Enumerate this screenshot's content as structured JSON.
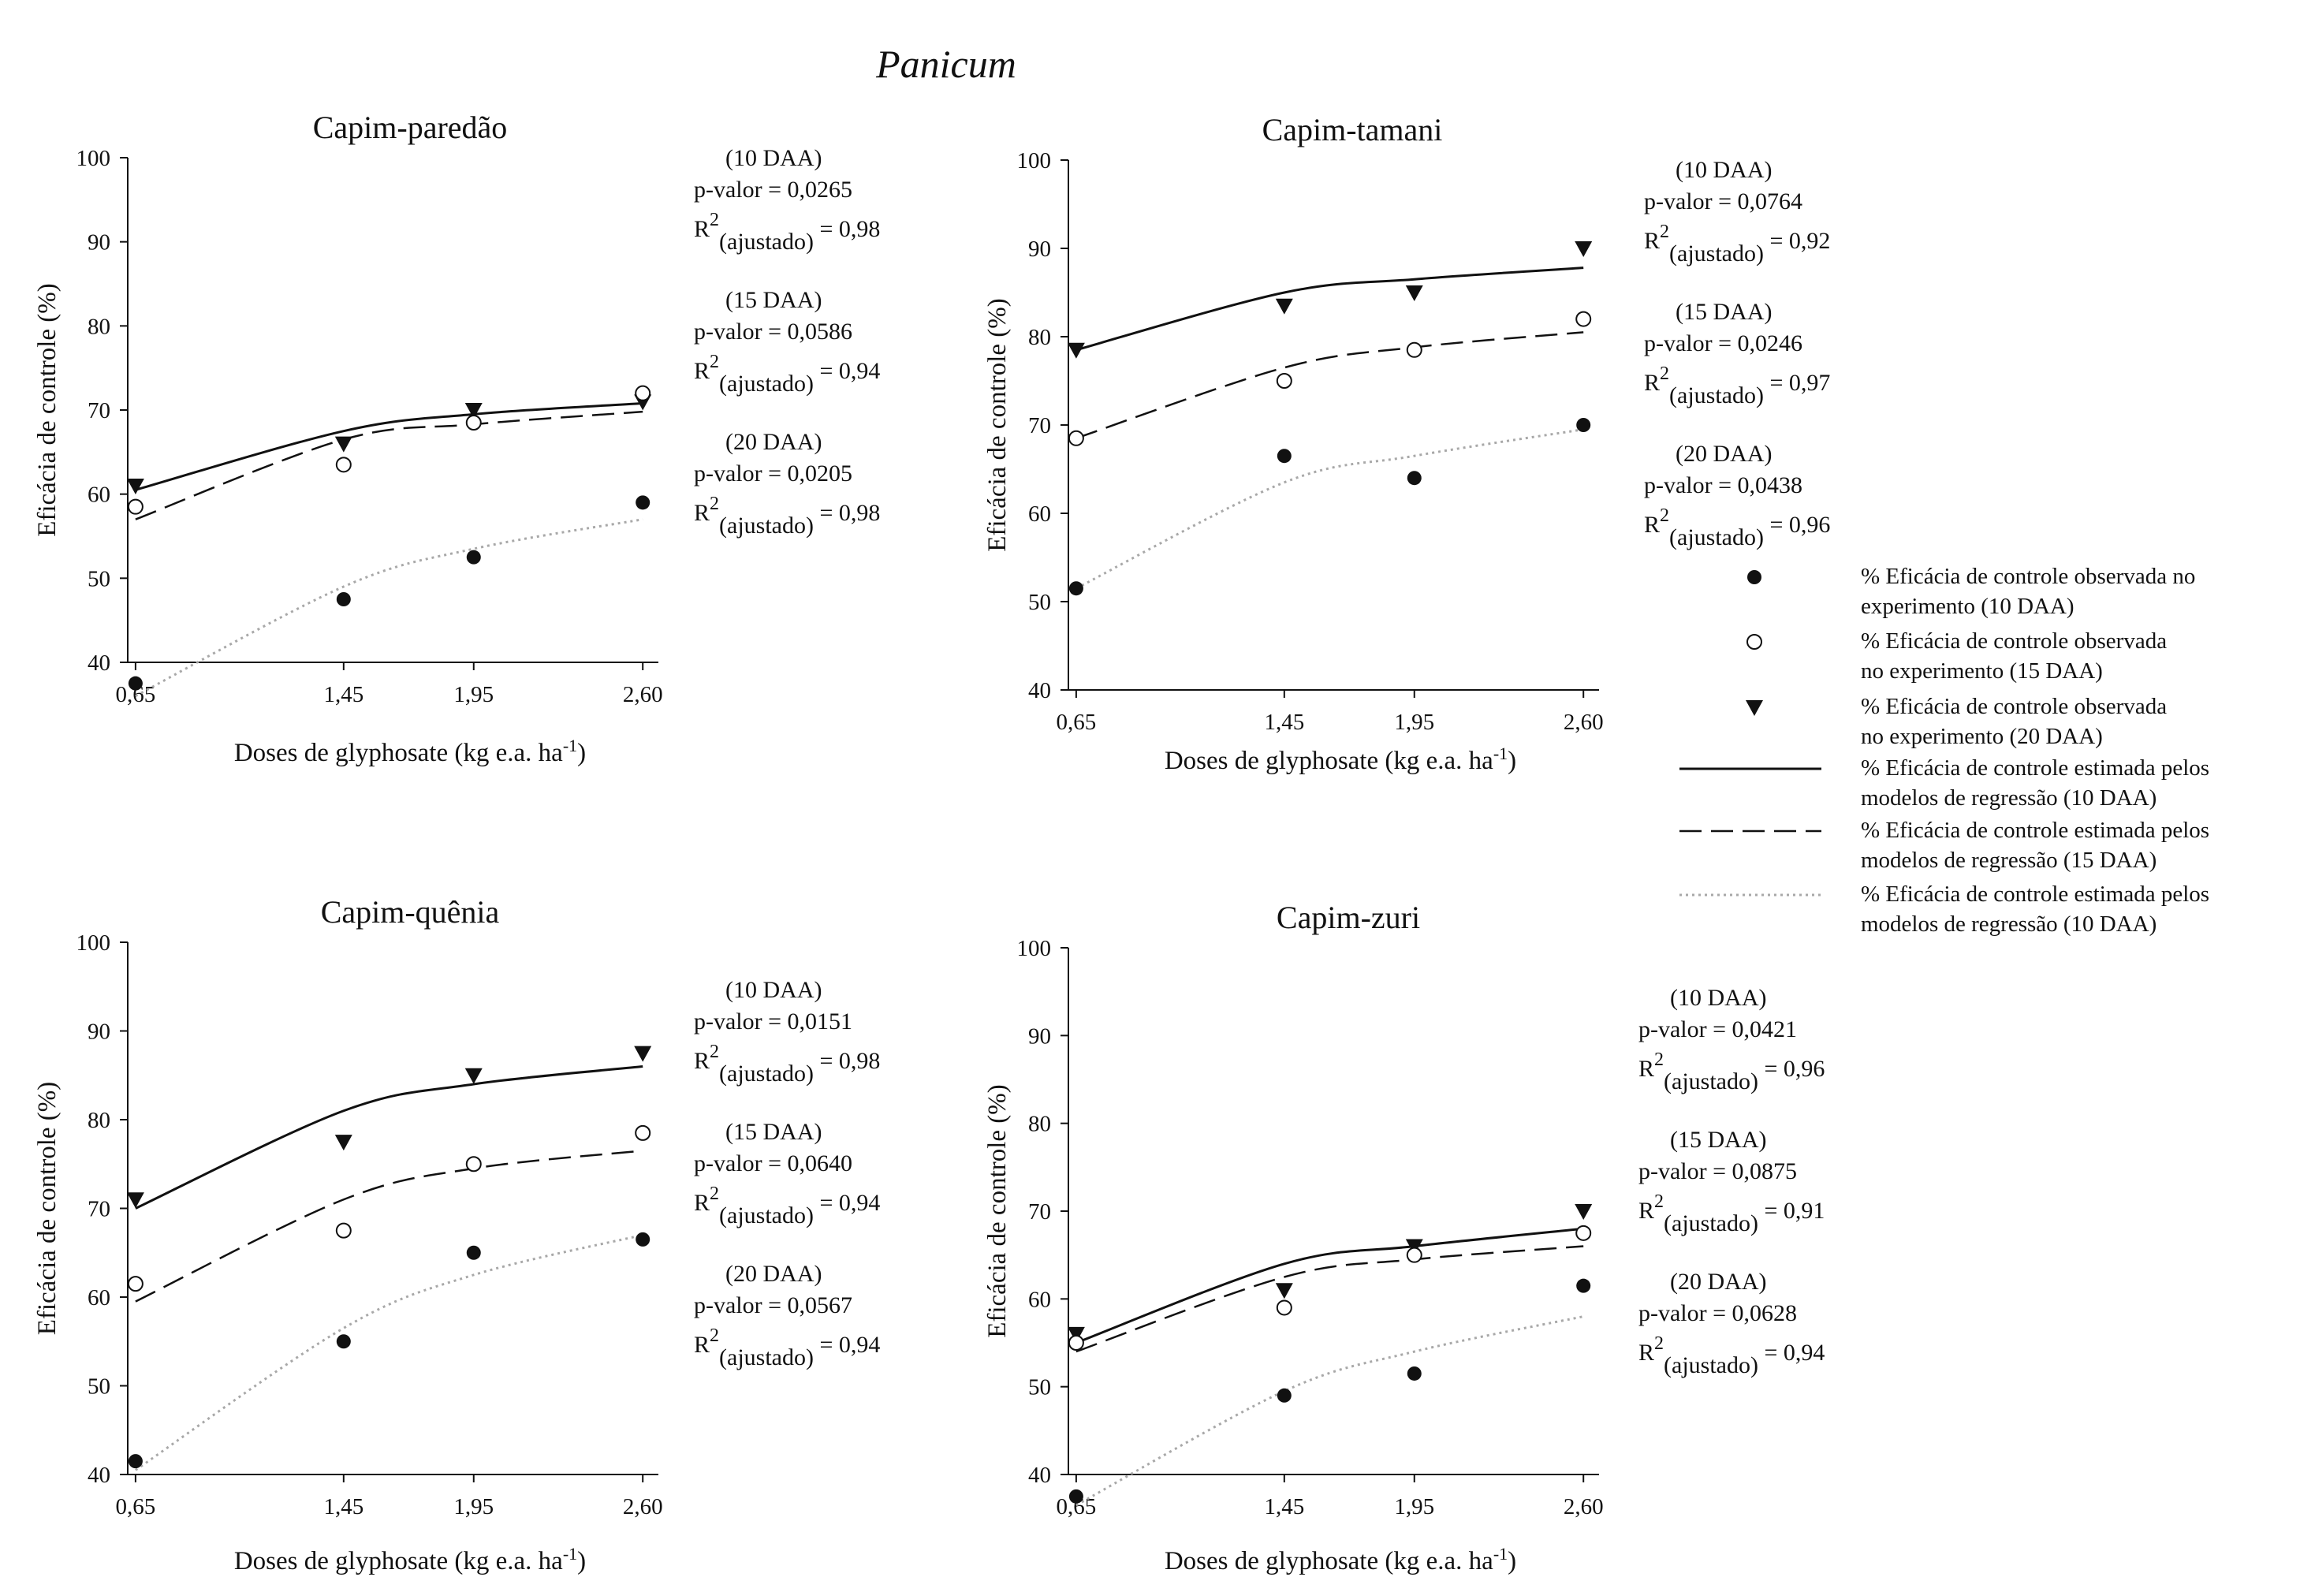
{
  "figure_title": "Panicum",
  "chart_data": [
    {
      "type": "scatter",
      "title": "Capim-paredão",
      "xlabel": "Doses de glyphosate (kg e.a. ha",
      "xlabel_sup": "-1",
      "ylabel": "Eficácia de controle (%)",
      "x": [
        0.65,
        1.45,
        1.95,
        2.6
      ],
      "x_tick_labels": [
        "0,65",
        "1,45",
        "1,95",
        "2,60"
      ],
      "ylim": [
        40,
        100
      ],
      "y_ticks": [
        40,
        50,
        60,
        70,
        80,
        90,
        100
      ],
      "series": [
        {
          "name": "20 DAA observado",
          "marker": "triangle",
          "values": [
            61,
            66,
            70,
            71
          ]
        },
        {
          "name": "15 DAA observado",
          "marker": "circle-open",
          "values": [
            58.5,
            63.5,
            68.5,
            72
          ]
        },
        {
          "name": "10 DAA observado",
          "marker": "circle-filled",
          "values": [
            37.5,
            47.5,
            52.5,
            59
          ]
        }
      ],
      "fits": [
        {
          "name": "estimada 10 DAA",
          "style": "solid",
          "values": [
            60.5,
            67.5,
            69.5,
            70.8
          ]
        },
        {
          "name": "estimada 15 DAA",
          "style": "dashed",
          "values": [
            57,
            66.5,
            68.3,
            69.8
          ]
        },
        {
          "name": "estimada 10 DAA",
          "style": "dotted",
          "values": [
            36,
            49,
            53.5,
            57
          ]
        }
      ],
      "stats": [
        {
          "label": "(10 DAA)",
          "p": "p-valor = 0,0265",
          "r2": "= 0,98"
        },
        {
          "label": "(15 DAA)",
          "p": "p-valor = 0,0586",
          "r2": "= 0,94"
        },
        {
          "label": "(20 DAA)",
          "p": "p-valor = 0,0205",
          "r2": "= 0,98"
        }
      ]
    },
    {
      "type": "scatter",
      "title": "Capim-tamani",
      "xlabel": "Doses de glyphosate (kg e.a. ha",
      "xlabel_sup": "-1",
      "ylabel": "Eficácia de controle (%)",
      "x": [
        0.65,
        1.45,
        1.95,
        2.6
      ],
      "x_tick_labels": [
        "0,65",
        "1,45",
        "1,95",
        "2,60"
      ],
      "ylim": [
        40,
        100
      ],
      "y_ticks": [
        40,
        50,
        60,
        70,
        80,
        90,
        100
      ],
      "series": [
        {
          "name": "20 DAA observado",
          "marker": "triangle",
          "values": [
            78.5,
            83.5,
            85,
            90
          ]
        },
        {
          "name": "15 DAA observado",
          "marker": "circle-open",
          "values": [
            68.5,
            75,
            78.5,
            82
          ]
        },
        {
          "name": "10 DAA observado",
          "marker": "circle-filled",
          "values": [
            51.5,
            66.5,
            64,
            70
          ]
        }
      ],
      "fits": [
        {
          "name": "estimada 10 DAA",
          "style": "solid",
          "values": [
            78.5,
            85,
            86.5,
            87.8
          ]
        },
        {
          "name": "estimada 15 DAA",
          "style": "dashed",
          "values": [
            68.5,
            76.5,
            78.8,
            80.5
          ]
        },
        {
          "name": "estimada 10 DAA",
          "style": "dotted",
          "values": [
            51.5,
            63.5,
            66.5,
            69.5
          ]
        }
      ],
      "stats": [
        {
          "label": "(10 DAA)",
          "p": "p-valor = 0,0764",
          "r2": "= 0,92"
        },
        {
          "label": "(15 DAA)",
          "p": "p-valor = 0,0246",
          "r2": "= 0,97"
        },
        {
          "label": "(20 DAA)",
          "p": "p-valor = 0,0438",
          "r2": "= 0,96"
        }
      ]
    },
    {
      "type": "scatter",
      "title": "Capim-quênia",
      "xlabel": "Doses de glyphosate (kg e.a. ha",
      "xlabel_sup": "-1",
      "ylabel": "Eficácia de controle (%)",
      "x": [
        0.65,
        1.45,
        1.95,
        2.6
      ],
      "x_tick_labels": [
        "0,65",
        "1,45",
        "1,95",
        "2,60"
      ],
      "ylim": [
        40,
        100
      ],
      "y_ticks": [
        40,
        50,
        60,
        70,
        80,
        90,
        100
      ],
      "series": [
        {
          "name": "20 DAA observado",
          "marker": "triangle",
          "values": [
            71,
            77.5,
            85,
            87.5
          ]
        },
        {
          "name": "15 DAA observado",
          "marker": "circle-open",
          "values": [
            61.5,
            67.5,
            75,
            78.5
          ]
        },
        {
          "name": "10 DAA observado",
          "marker": "circle-filled",
          "values": [
            41.5,
            55,
            65,
            66.5
          ]
        }
      ],
      "fits": [
        {
          "name": "estimada 10 DAA",
          "style": "solid",
          "values": [
            70,
            81,
            84,
            86
          ]
        },
        {
          "name": "estimada 15 DAA",
          "style": "dashed",
          "values": [
            59.5,
            71,
            74.5,
            76.5
          ]
        },
        {
          "name": "estimada 10 DAA",
          "style": "dotted",
          "values": [
            40.5,
            56.5,
            62.5,
            67
          ]
        }
      ],
      "stats": [
        {
          "label": "(10 DAA)",
          "p": "p-valor = 0,0151",
          "r2": "= 0,98"
        },
        {
          "label": "(15 DAA)",
          "p": "p-valor = 0,0640",
          "r2": "= 0,94"
        },
        {
          "label": "(20 DAA)",
          "p": "p-valor = 0,0567",
          "r2": "= 0,94"
        }
      ]
    },
    {
      "type": "scatter",
      "title": "Capim-zuri",
      "xlabel": "Doses de glyphosate (kg e.a. ha",
      "xlabel_sup": "-1",
      "ylabel": "Eficácia de controle (%)",
      "x": [
        0.65,
        1.45,
        1.95,
        2.6
      ],
      "x_tick_labels": [
        "0,65",
        "1,45",
        "1,95",
        "2,60"
      ],
      "ylim": [
        40,
        100
      ],
      "y_ticks": [
        40,
        50,
        60,
        70,
        80,
        90,
        100
      ],
      "series": [
        {
          "name": "20 DAA observado",
          "marker": "triangle",
          "values": [
            56,
            61,
            66,
            70
          ]
        },
        {
          "name": "15 DAA observado",
          "marker": "circle-open",
          "values": [
            55,
            59,
            65,
            67.5
          ]
        },
        {
          "name": "10 DAA observado",
          "marker": "circle-filled",
          "values": [
            37.5,
            49,
            51.5,
            61.5
          ]
        }
      ],
      "fits": [
        {
          "name": "estimada 10 DAA",
          "style": "solid",
          "values": [
            55,
            64,
            66,
            68
          ]
        },
        {
          "name": "estimada 15 DAA",
          "style": "dashed",
          "values": [
            54,
            62.5,
            64.5,
            66
          ]
        },
        {
          "name": "estimada 10 DAA",
          "style": "dotted",
          "values": [
            36.5,
            49.5,
            54,
            58
          ]
        }
      ],
      "stats": [
        {
          "label": "(10 DAA)",
          "p": "p-valor = 0,0421",
          "r2": "= 0,96"
        },
        {
          "label": "(15 DAA)",
          "p": "p-valor = 0,0875",
          "r2": "= 0,91"
        },
        {
          "label": "(20 DAA)",
          "p": "p-valor = 0,0628",
          "r2": "= 0,94"
        }
      ]
    }
  ],
  "r2_label": {
    "base": "R",
    "sup": "2",
    "sub": "(ajustado)"
  },
  "legend": [
    {
      "symbol": "circle-filled",
      "lines": [
        "% Eficácia de controle observada no",
        " experimento (10 DAA)"
      ]
    },
    {
      "symbol": "circle-open",
      "lines": [
        "% Eficácia de controle observada",
        " no experimento (15 DAA)"
      ]
    },
    {
      "symbol": "triangle",
      "lines": [
        "% Eficácia de controle observada",
        " no experimento (20 DAA)"
      ]
    },
    {
      "symbol": "line-solid",
      "lines": [
        "% Eficácia de controle estimada pelos",
        "modelos de regressão (10 DAA)"
      ]
    },
    {
      "symbol": "line-dashed",
      "lines": [
        "% Eficácia de controle estimada pelos",
        " modelos de regressão (15 DAA)"
      ]
    },
    {
      "symbol": "line-dotted",
      "lines": [
        "% Eficácia de controle estimada pelos",
        "modelos de regressão (10 DAA)"
      ]
    }
  ]
}
